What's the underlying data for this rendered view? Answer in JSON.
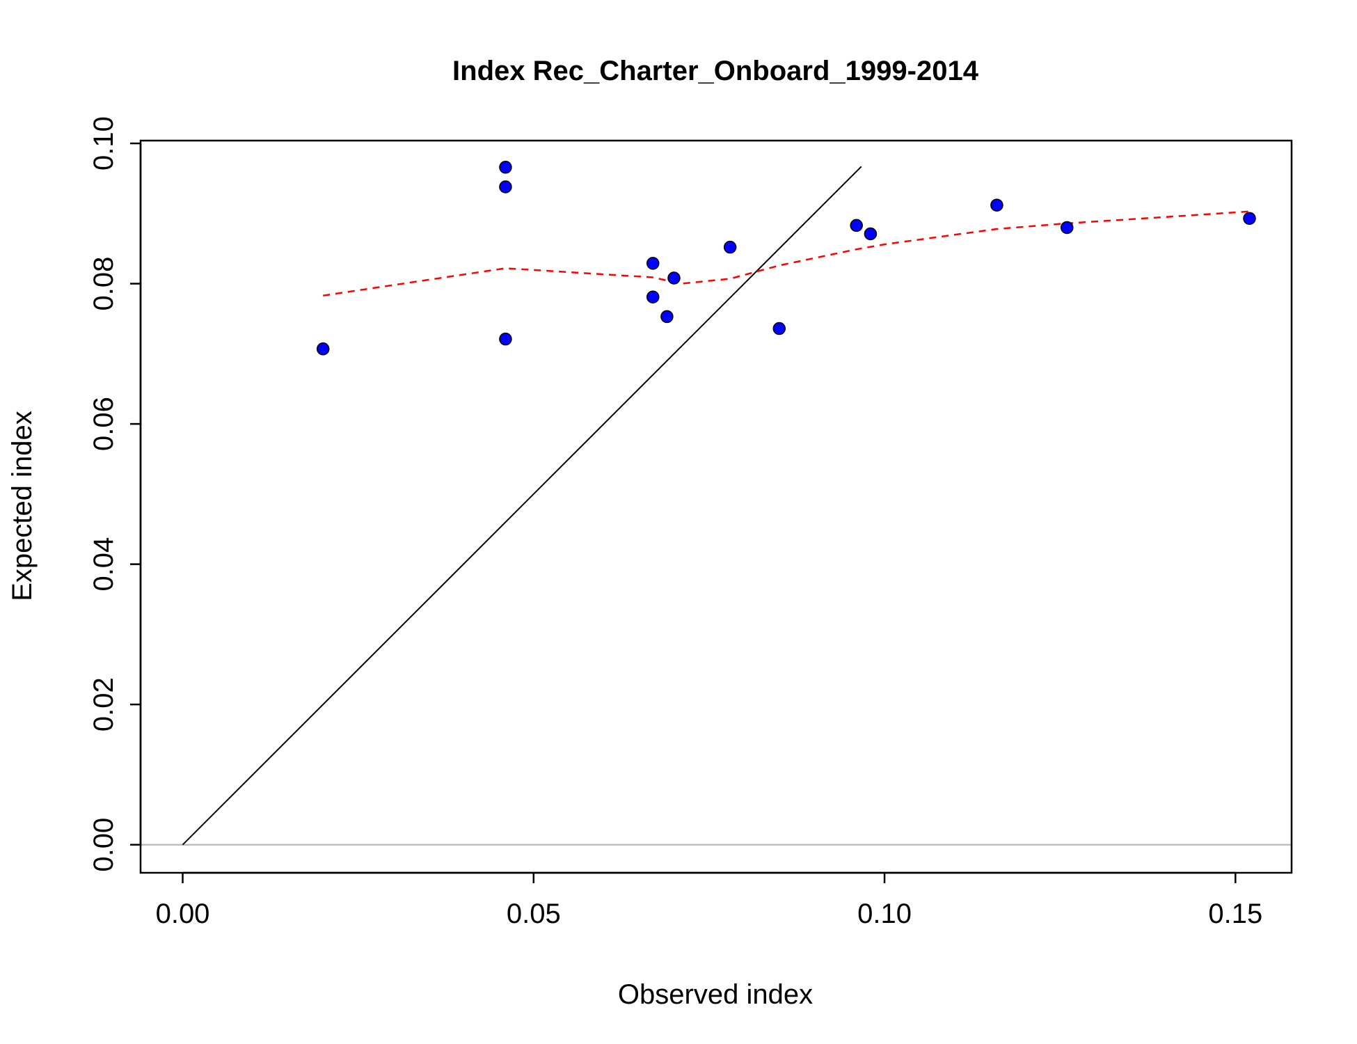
{
  "chart_data": {
    "type": "scatter",
    "title": "Index Rec_Charter_Onboard_1999-2014",
    "xlabel": "Observed index",
    "ylabel": "Expected index",
    "xlim": [
      -0.006,
      0.158
    ],
    "ylim": [
      -0.004,
      0.1004
    ],
    "x_ticks": [
      {
        "value": 0.0,
        "label": "0.00"
      },
      {
        "value": 0.05,
        "label": "0.05"
      },
      {
        "value": 0.1,
        "label": "0.10"
      },
      {
        "value": 0.15,
        "label": "0.15"
      }
    ],
    "y_ticks": [
      {
        "value": 0.0,
        "label": "0.00"
      },
      {
        "value": 0.02,
        "label": "0.02"
      },
      {
        "value": 0.04,
        "label": "0.04"
      },
      {
        "value": 0.06,
        "label": "0.06"
      },
      {
        "value": 0.08,
        "label": "0.08"
      },
      {
        "value": 0.1,
        "label": "0.10"
      }
    ],
    "points": [
      {
        "x": 0.02,
        "y": 0.0707
      },
      {
        "x": 0.046,
        "y": 0.0966
      },
      {
        "x": 0.046,
        "y": 0.0938
      },
      {
        "x": 0.046,
        "y": 0.0721
      },
      {
        "x": 0.067,
        "y": 0.0829
      },
      {
        "x": 0.067,
        "y": 0.0781
      },
      {
        "x": 0.069,
        "y": 0.0753
      },
      {
        "x": 0.07,
        "y": 0.0808
      },
      {
        "x": 0.078,
        "y": 0.0852
      },
      {
        "x": 0.085,
        "y": 0.0736
      },
      {
        "x": 0.096,
        "y": 0.0883
      },
      {
        "x": 0.098,
        "y": 0.0871
      },
      {
        "x": 0.116,
        "y": 0.0912
      },
      {
        "x": 0.126,
        "y": 0.088
      },
      {
        "x": 0.152,
        "y": 0.0893
      }
    ],
    "identity_line": {
      "x": [
        0.0,
        0.0967
      ],
      "y": [
        0.0,
        0.0967
      ]
    },
    "smoother": {
      "x": [
        0.02,
        0.046,
        0.067,
        0.071,
        0.078,
        0.085,
        0.096,
        0.1,
        0.116,
        0.126,
        0.14,
        0.152
      ],
      "y": [
        0.0783,
        0.0822,
        0.0809,
        0.08,
        0.0807,
        0.0826,
        0.0849,
        0.0856,
        0.0878,
        0.0886,
        0.0895,
        0.0903
      ]
    },
    "zero_line_y": 0.0,
    "colors": {
      "points": "#0000ff",
      "point_outline": "#000000",
      "identity_line": "#000000",
      "smoother": "#ff0000",
      "zero_line": "#bebebe"
    },
    "grid": false
  }
}
